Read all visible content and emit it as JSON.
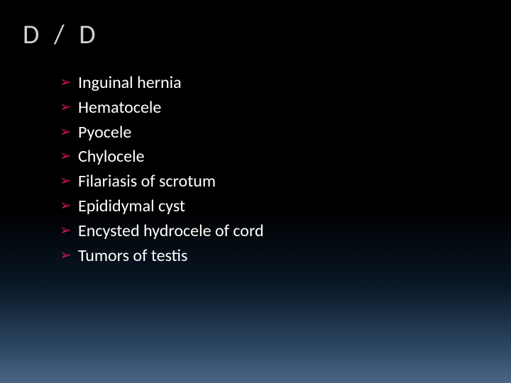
{
  "slide": {
    "title": "D / D",
    "title_color": "#d0d0d0",
    "title_fontsize": 38,
    "bullet_color": "#c2185b",
    "bullet_glyph": "➢",
    "text_color": "#ffffff",
    "item_fontsize": 24,
    "background_gradient": [
      "#000000",
      "#000000",
      "#0a1828",
      "#2a4560",
      "#4a6585"
    ],
    "items": [
      "Inguinal hernia",
      "Hematocele",
      "Pyocele",
      "Chylocele",
      "Filariasis of scrotum",
      "Epididymal cyst",
      "Encysted hydrocele of cord",
      "Tumors of testis"
    ]
  }
}
